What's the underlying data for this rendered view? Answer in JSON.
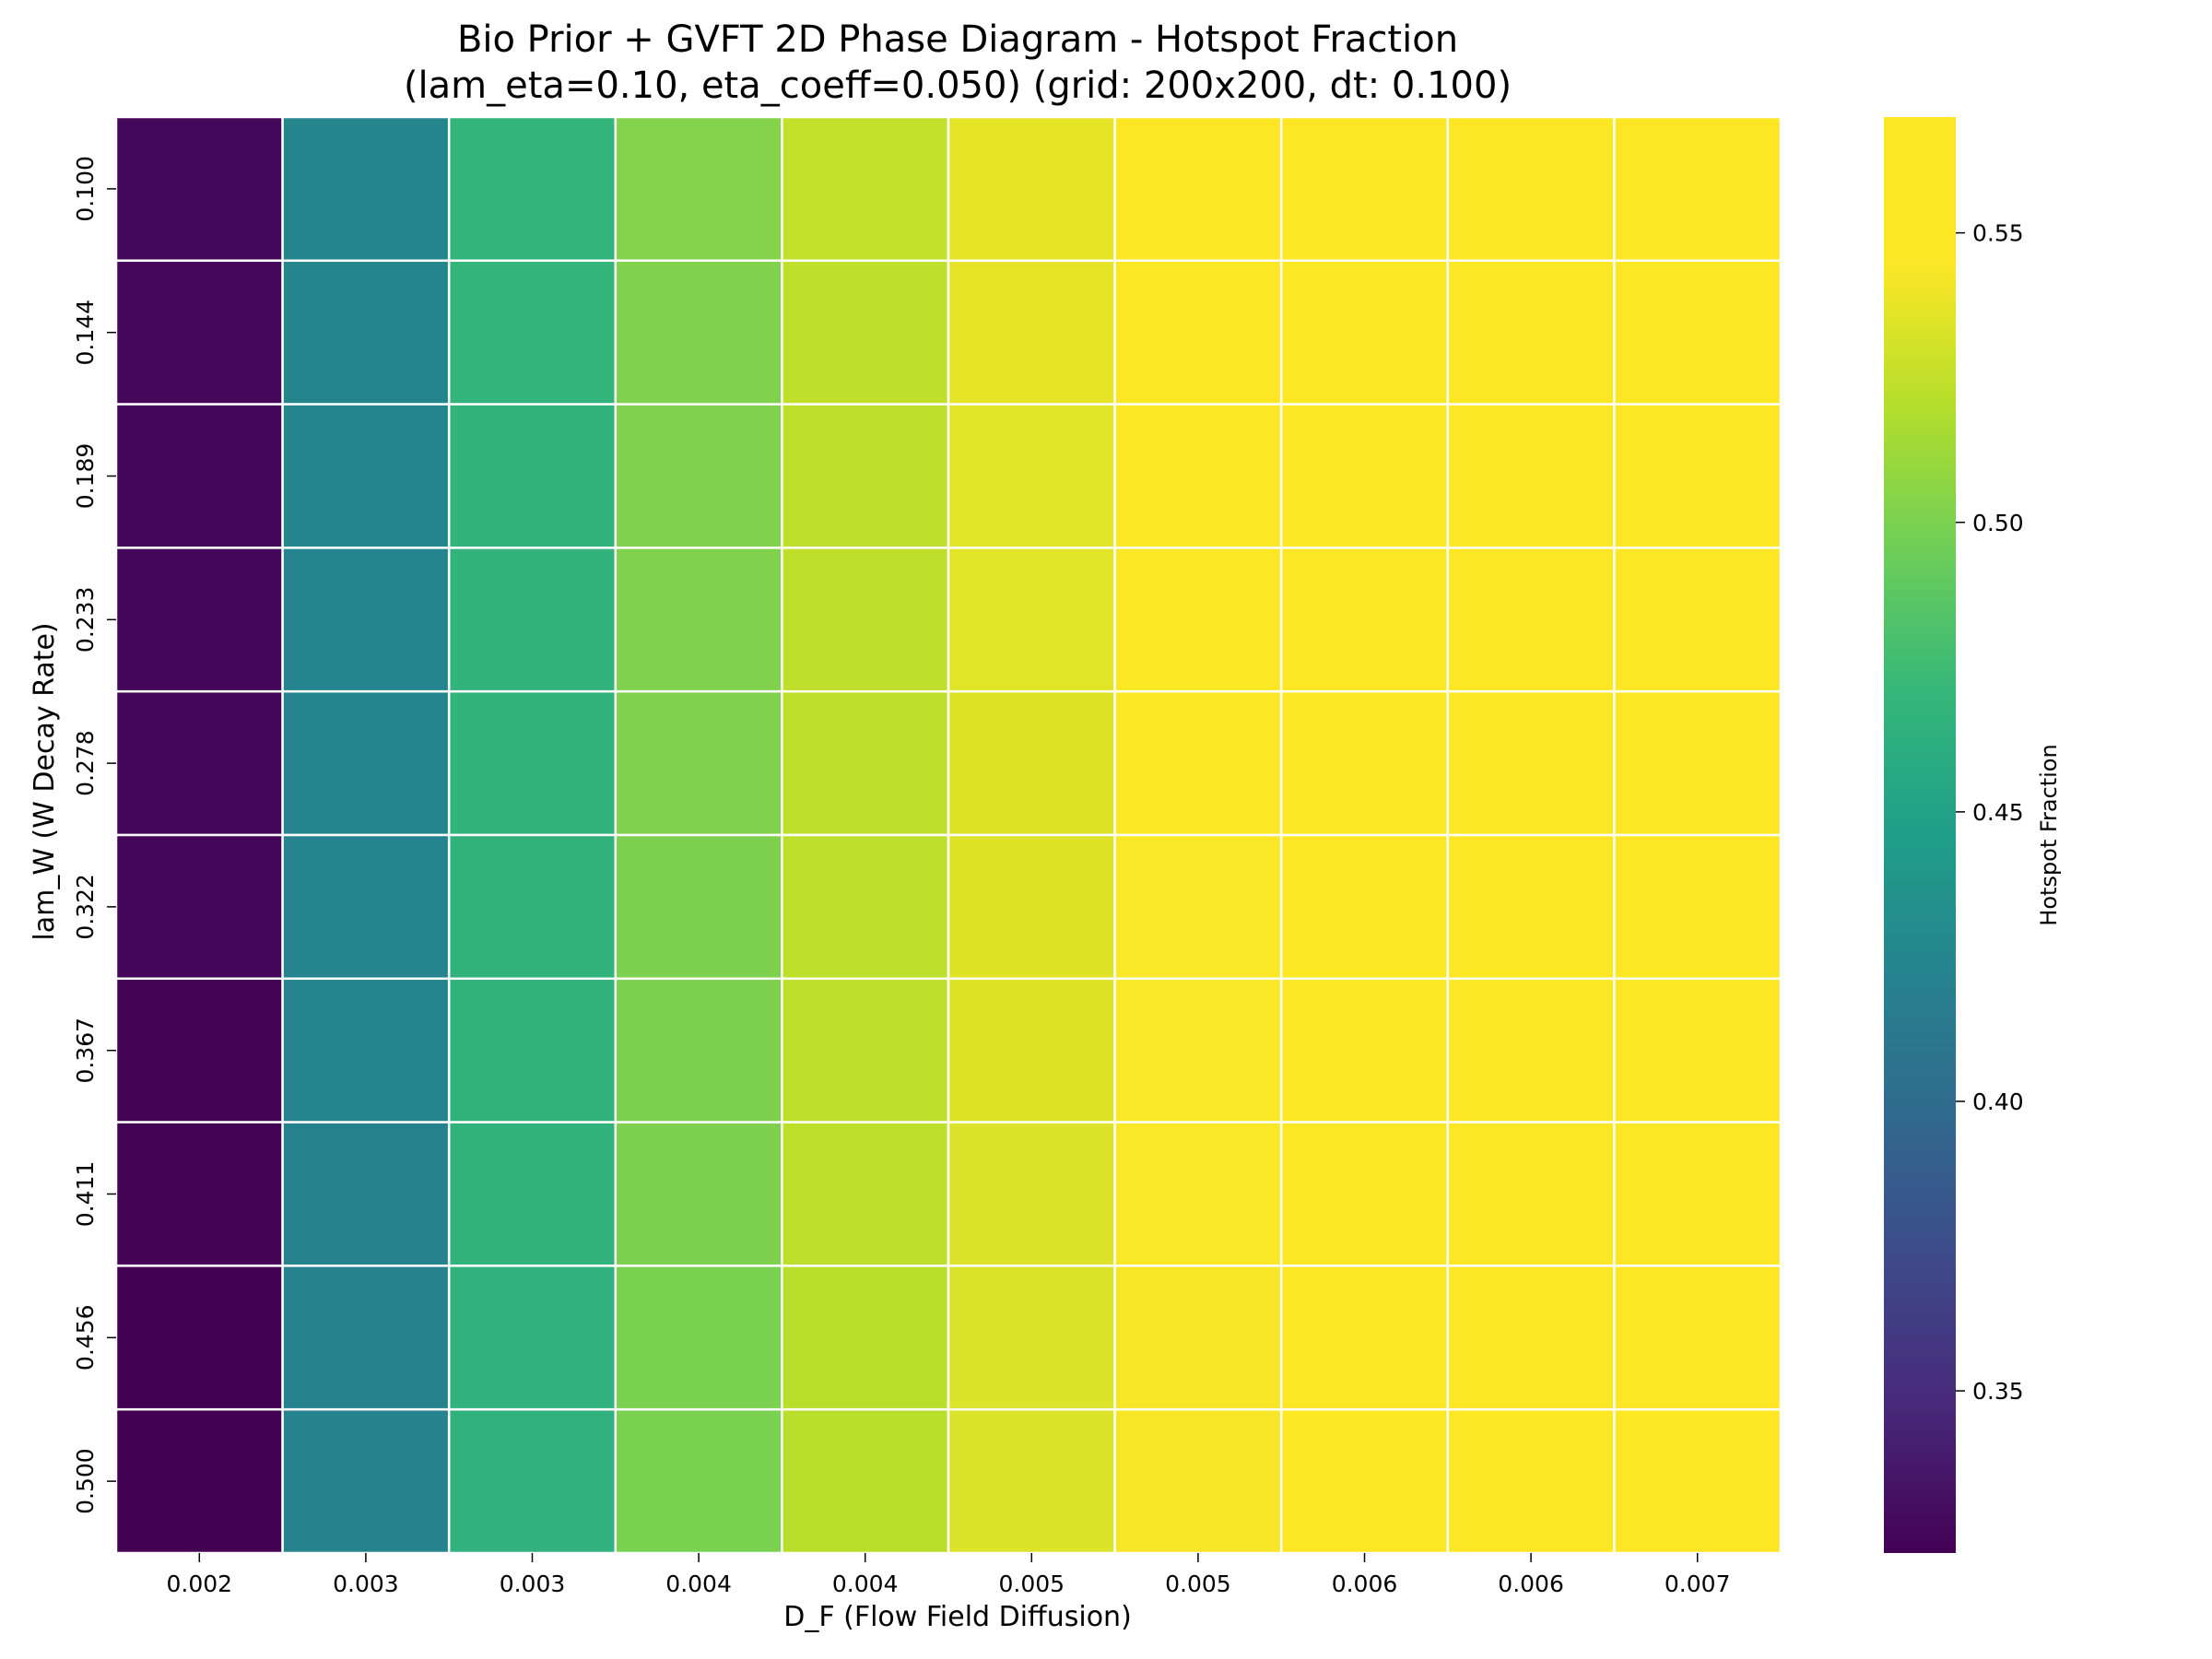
{
  "chart_data": {
    "type": "heatmap",
    "title_line1": "Bio Prior + GVFT 2D Phase Diagram - Hotspot Fraction",
    "title_line2": "(lam_eta=0.10, eta_coeff=0.050) (grid: 200x200, dt: 0.100)",
    "xlabel": "D_F (Flow Field Diffusion)",
    "ylabel": "lam_W (W Decay Rate)",
    "x_categories": [
      "0.002",
      "0.003",
      "0.003",
      "0.004",
      "0.004",
      "0.005",
      "0.005",
      "0.006",
      "0.006",
      "0.007"
    ],
    "y_categories": [
      "0.100",
      "0.144",
      "0.189",
      "0.233",
      "0.278",
      "0.322",
      "0.367",
      "0.411",
      "0.456",
      "0.500"
    ],
    "values": [
      [
        0.327,
        0.424,
        0.468,
        0.503,
        0.525,
        0.537,
        0.546,
        0.552,
        0.558,
        0.568
      ],
      [
        0.326,
        0.424,
        0.468,
        0.502,
        0.524,
        0.537,
        0.546,
        0.552,
        0.557,
        0.568
      ],
      [
        0.325,
        0.424,
        0.467,
        0.502,
        0.524,
        0.536,
        0.545,
        0.552,
        0.557,
        0.568
      ],
      [
        0.325,
        0.423,
        0.467,
        0.502,
        0.524,
        0.536,
        0.545,
        0.551,
        0.557,
        0.568
      ],
      [
        0.324,
        0.423,
        0.467,
        0.502,
        0.523,
        0.535,
        0.545,
        0.551,
        0.557,
        0.568
      ],
      [
        0.324,
        0.423,
        0.466,
        0.501,
        0.523,
        0.535,
        0.544,
        0.551,
        0.557,
        0.568
      ],
      [
        0.323,
        0.423,
        0.466,
        0.501,
        0.523,
        0.535,
        0.544,
        0.551,
        0.556,
        0.568
      ],
      [
        0.323,
        0.422,
        0.466,
        0.501,
        0.523,
        0.534,
        0.544,
        0.55,
        0.556,
        0.568
      ],
      [
        0.322,
        0.422,
        0.465,
        0.5,
        0.522,
        0.534,
        0.543,
        0.55,
        0.556,
        0.568
      ],
      [
        0.322,
        0.422,
        0.465,
        0.5,
        0.522,
        0.534,
        0.543,
        0.55,
        0.556,
        0.568
      ]
    ],
    "vmin": 0.322,
    "vmax": 0.57,
    "colormap": "viridis",
    "colorbar_label": "Hotspot Fraction",
    "colorbar_ticks": [
      "0.35",
      "0.40",
      "0.45",
      "0.50",
      "0.55"
    ],
    "grid_line_color": "#ffffff"
  }
}
